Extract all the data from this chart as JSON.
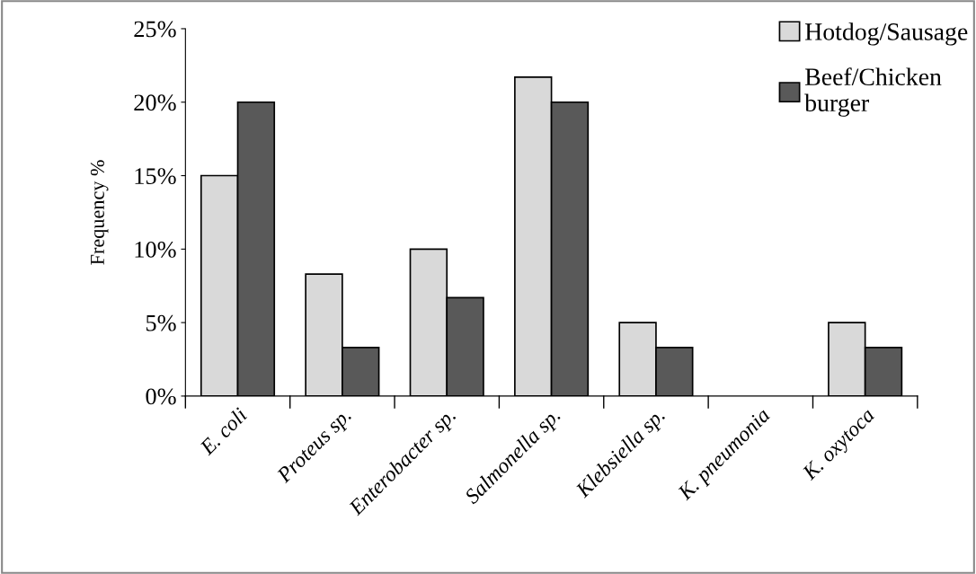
{
  "chart_data": {
    "type": "bar",
    "ylabel": "Frequency %",
    "categories": [
      "E. coli",
      "Proteus sp.",
      "Enterobacter sp.",
      "Salmonella sp.",
      "Klebsiella sp.",
      "K. pneumonia",
      "K. oxytoca"
    ],
    "series": [
      {
        "name": "Hotdog/Sausage",
        "color": "#d9d9d9",
        "values": [
          15,
          8.3,
          10,
          21.7,
          5,
          0,
          5
        ]
      },
      {
        "name": "Beef/Chicken\nburger",
        "color": "#595959",
        "values": [
          20,
          3.3,
          6.7,
          20,
          3.3,
          0,
          3.3
        ]
      }
    ],
    "ylim": [
      0,
      25
    ],
    "yticks": [
      {
        "value": 0,
        "label": "0%"
      },
      {
        "value": 5,
        "label": "5%"
      },
      {
        "value": 10,
        "label": "10%"
      },
      {
        "value": 15,
        "label": "15%"
      },
      {
        "value": 20,
        "label": "20%"
      },
      {
        "value": 25,
        "label": "25%"
      }
    ],
    "grid": false,
    "legend": "top right"
  }
}
